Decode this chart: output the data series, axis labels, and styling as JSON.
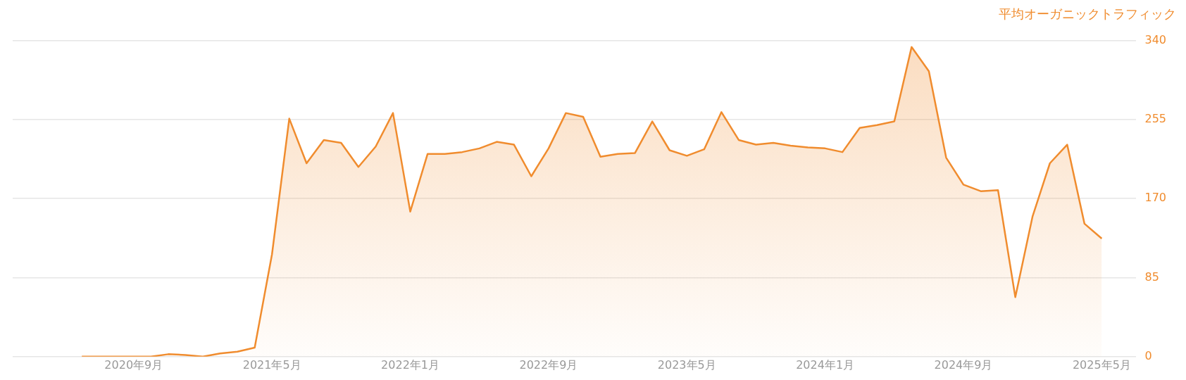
{
  "chart_data": {
    "type": "area",
    "ylabel": "平均オーガニックトラフィック",
    "x": [
      "2020-06",
      "2020-07",
      "2020-08",
      "2020-09",
      "2020-10",
      "2020-11",
      "2020-12",
      "2021-01",
      "2021-02",
      "2021-03",
      "2021-04",
      "2021-05",
      "2021-06",
      "2021-07",
      "2021-08",
      "2021-09",
      "2021-10",
      "2021-11",
      "2021-12",
      "2022-01",
      "2022-02",
      "2022-03",
      "2022-04",
      "2022-05",
      "2022-06",
      "2022-07",
      "2022-08",
      "2022-09",
      "2022-10",
      "2022-11",
      "2022-12",
      "2023-01",
      "2023-02",
      "2023-03",
      "2023-04",
      "2023-05",
      "2023-06",
      "2023-07",
      "2023-08",
      "2023-09",
      "2023-10",
      "2023-11",
      "2023-12",
      "2024-01",
      "2024-02",
      "2024-03",
      "2024-04",
      "2024-05",
      "2024-06",
      "2024-07",
      "2024-08",
      "2024-09",
      "2024-10",
      "2024-11",
      "2024-12",
      "2025-01",
      "2025-02",
      "2025-03",
      "2025-04",
      "2025-05"
    ],
    "series": [
      {
        "color": "#f08c2e",
        "values": [
          0,
          0,
          0,
          0,
          0,
          2.6,
          1.8,
          0,
          3.5,
          5.3,
          9.7,
          110,
          256,
          208,
          233,
          230,
          204,
          226,
          262,
          156,
          218,
          218,
          220,
          224,
          231,
          228,
          194,
          224,
          262,
          258,
          215,
          218,
          219,
          253,
          222,
          216,
          223,
          263,
          233,
          228,
          230,
          227,
          225,
          224,
          220,
          246,
          249,
          253,
          333,
          307,
          214,
          185,
          178,
          179,
          64,
          151,
          208,
          228,
          143,
          127
        ]
      }
    ],
    "xlim": [
      "2020-02",
      "2025-07"
    ],
    "xticks": [
      {
        "value": "2020-09",
        "label": "2020年9月"
      },
      {
        "value": "2021-05",
        "label": "2021年5月"
      },
      {
        "value": "2022-01",
        "label": "2022年1月"
      },
      {
        "value": "2022-09",
        "label": "2022年9月"
      },
      {
        "value": "2023-05",
        "label": "2023年5月"
      },
      {
        "value": "2024-01",
        "label": "2024年1月"
      },
      {
        "value": "2024-09",
        "label": "2024年9月"
      },
      {
        "value": "2025-05",
        "label": "2025年5月"
      }
    ],
    "ylim": [
      0,
      340
    ],
    "yticks": [
      0,
      85,
      170,
      255,
      340
    ],
    "grid": "y",
    "legend": false,
    "marker": "none",
    "line_style": "solid"
  }
}
